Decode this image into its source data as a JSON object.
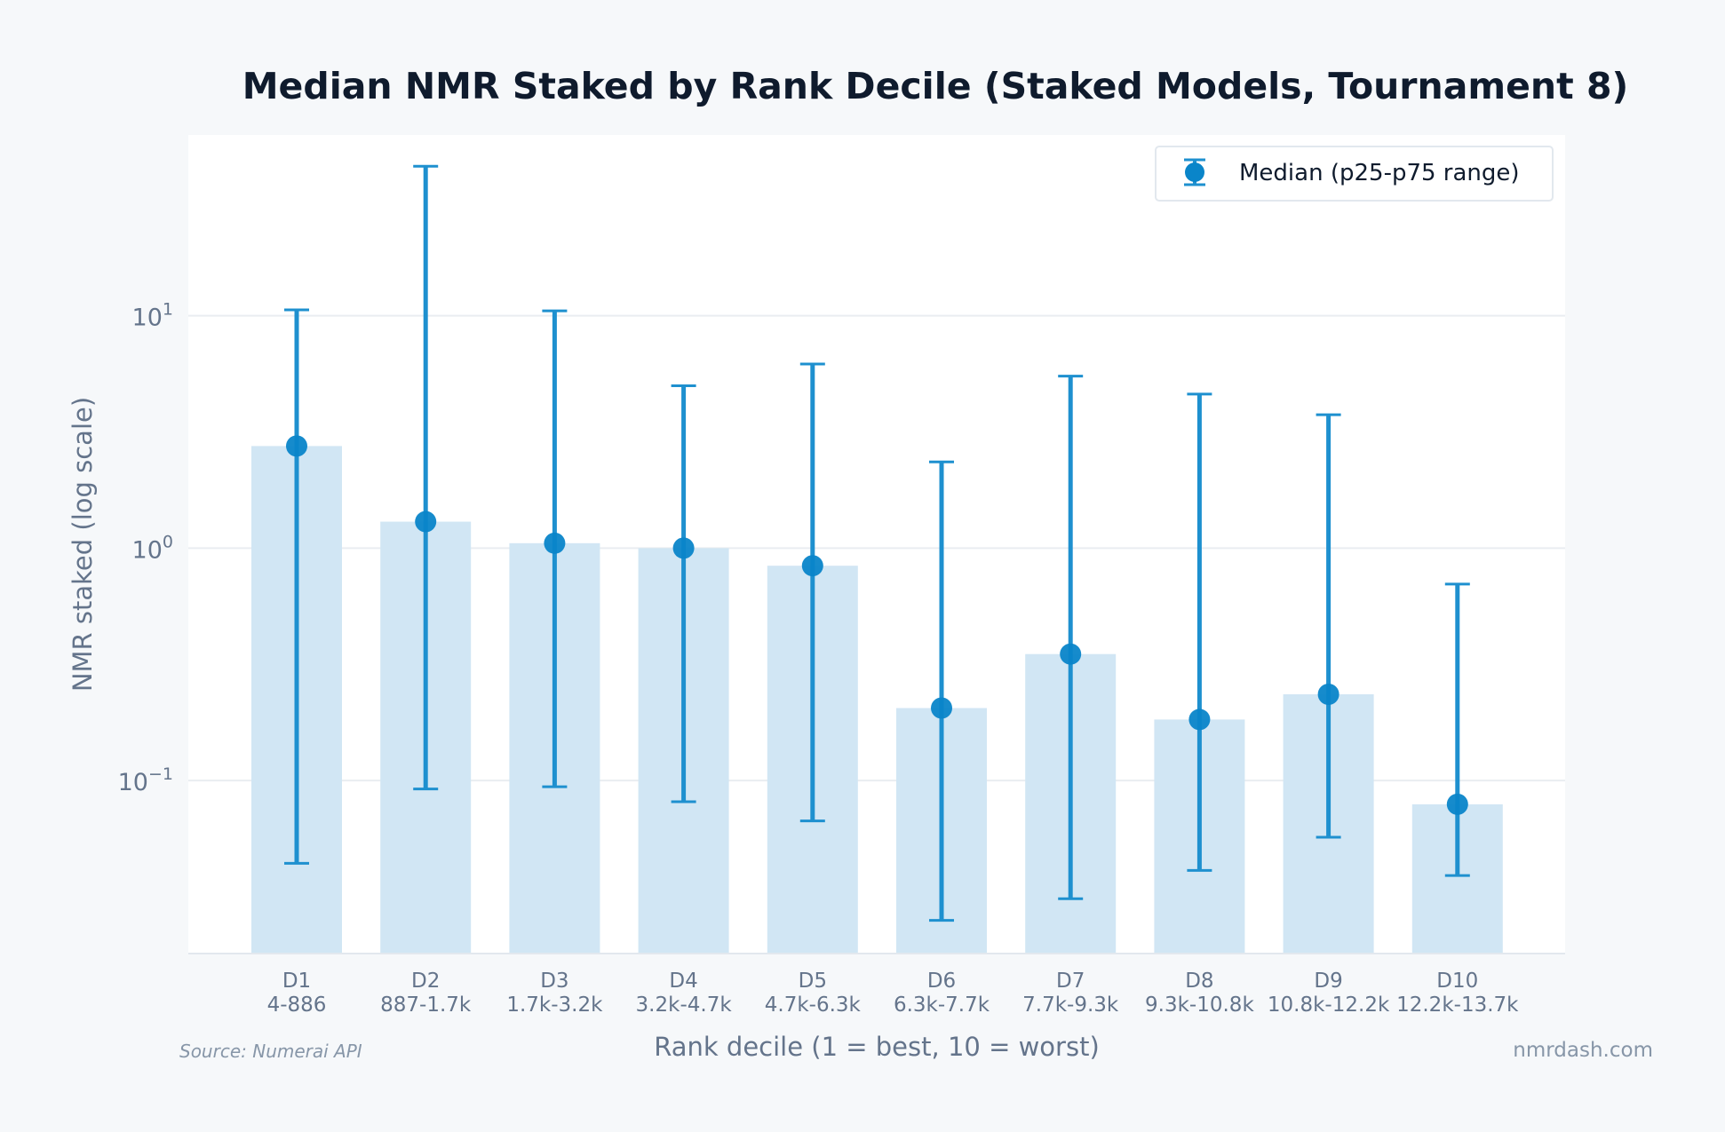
{
  "chart_data": {
    "type": "bar",
    "title": "Median NMR Staked by Rank Decile (Staked Models, Tournament 8)",
    "xlabel": "Rank decile (1 = best, 10 = worst)",
    "ylabel": "NMR staked (log scale)",
    "yscale": "log",
    "ylim": [
      0.018,
      60
    ],
    "y_ticks": [
      {
        "value": 0.1,
        "base": "10",
        "exp": "−1"
      },
      {
        "value": 1,
        "base": "10",
        "exp": "0"
      },
      {
        "value": 10,
        "base": "10",
        "exp": "1"
      }
    ],
    "grid": "horizontal",
    "legend": {
      "position": "top-right",
      "label": "Median (p25-p75 range)"
    },
    "categories": [
      {
        "label": "D1",
        "range": "4-886"
      },
      {
        "label": "D2",
        "range": "887-1.7k"
      },
      {
        "label": "D3",
        "range": "1.7k-3.2k"
      },
      {
        "label": "D4",
        "range": "3.2k-4.7k"
      },
      {
        "label": "D5",
        "range": "4.7k-6.3k"
      },
      {
        "label": "D6",
        "range": "6.3k-7.7k"
      },
      {
        "label": "D7",
        "range": "7.7k-9.3k"
      },
      {
        "label": "D8",
        "range": "9.3k-10.8k"
      },
      {
        "label": "D9",
        "range": "10.8k-12.2k"
      },
      {
        "label": "D10",
        "range": "12.2k-13.7k"
      }
    ],
    "series": [
      {
        "values": [
          2.75,
          1.3,
          1.05,
          1.0,
          0.84,
          0.205,
          0.35,
          0.183,
          0.235,
          0.079
        ],
        "p25": [
          0.044,
          0.092,
          0.094,
          0.081,
          0.067,
          0.025,
          0.031,
          0.041,
          0.057,
          0.039
        ],
        "p75": [
          10.6,
          44.0,
          10.5,
          5.0,
          6.2,
          2.35,
          5.5,
          4.6,
          3.75,
          0.7
        ]
      }
    ],
    "colors": {
      "bar": "#d1e6f4",
      "marker": "#0a85c9",
      "errorbar": "#1e90cf",
      "title": "#0f1b2d",
      "axis_text": "#64748b",
      "grid": "#e9edf1",
      "plot_bg": "#ffffff",
      "page_bg": "#f6f8fa"
    }
  },
  "footer": {
    "source": "Source: Numerai API",
    "site": "nmrdash.com"
  }
}
